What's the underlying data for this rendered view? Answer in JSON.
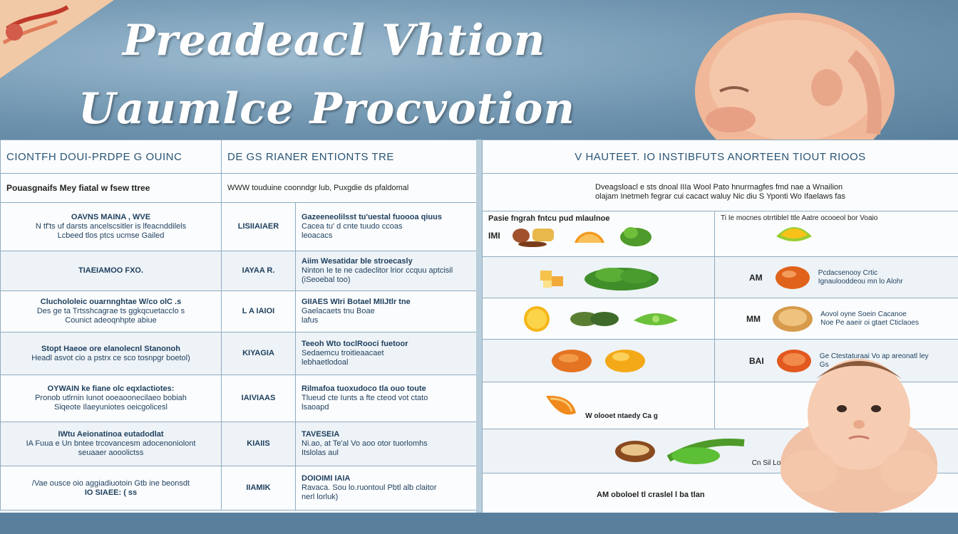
{
  "banner": {
    "title_line1": "Preadeacl Vhtion",
    "title_line2": "Uaumlce Procvotion"
  },
  "left_table": {
    "headers": [
      "CIONTFH DOUI-PRDPE G OUINC",
      "DE GS RIANER ENTIONTS TRE"
    ],
    "subheader": [
      "Pouasgnaifs Mey fiatal w fsew ttree",
      "WWW touduine coonndgr lub, Puxgdie ds pfaldomal"
    ],
    "rows": [
      {
        "label": "OAVNS MAINA , WVE",
        "text": "N tf'ts uf darsts ancelscsitler is lfeacnddilels\nLcbeed tlos ptcs ucmse Gailed",
        "code": "LISIIAIAER",
        "desc_head": "Gazeeneolilsst tu'uestal fuoooa qiuus",
        "desc": "Cacea tu' d cnte tuudo ccoas\nleoacacs"
      },
      {
        "label": "TIAEIAMOO FXO.",
        "text": "",
        "code": "IAYAA R.",
        "desc_head": "Aiim  Wesatidar ble stroecasly",
        "desc": "Ninton Ie te ne cadeclitor lrior ccquu aptcisil\n(iSeoebal too)"
      },
      {
        "label": "Cluchololeic ouarnnghtae  W/co olC .s",
        "text": "Des ge ta Trtsshcagrae ts ggkqcuetacclo s\nCounict adeoqnhpte abiue",
        "code": "L A IAIOI",
        "desc_head": "GIIAES WIri Botael MIIJtlr tne",
        "desc": "Gaelacaets tnu Boae\nlafus"
      },
      {
        "label": "Stopt Haeoe ore elanolecnl Stanonoh",
        "text": "Headl asvot cio a pstrx ce sco tosnpgr boetol)",
        "code": "KIYAGIA",
        "desc_head": "Teeoh Wto  toclRooci fuetoor",
        "desc": "Sedaemcu troitieaacaet\nlebhaetlodoal"
      },
      {
        "label": "OYWAIN ke fiane olc eqxlactiotes:",
        "text": "Pronob utlrnin Iunot ooeaoonecilaeo bobiah\nSiqeote Ilaeyuniotes oeicgolicesl",
        "code": "IAIVIAAS",
        "desc_head": "Rilmafoa tuoxudoco tla ouo toute",
        "desc": "Tlueud cte Iunts a fte cteod vot ctato\nlsaoapd"
      },
      {
        "label": "IWtu Aeionatinoa eutadodlat",
        "text": "IA  Fuua e Un bntee trcovancesm adocenoniolont\nseuaaer aooolictss",
        "code": "KIAIIS",
        "desc_head": "TAVESEIA",
        "desc": "Ni.ao, at Te'al  Vo aoo otor tuorlomhs\nItslolas aul"
      },
      {
        "label": "/Vae ousce oio aggiadiuotoin Gtb ine beonsdt",
        "text": "IO SIAEE: ( ss",
        "code": "IIAMIK",
        "desc_head": "DOIOIMI IAIA",
        "desc": "Ravaca. Sou lo.ruontoul Pbtl alb claitor\nnerl lorluk)"
      }
    ]
  },
  "right_table": {
    "header": "V HAUTEET. IO INSTIBFUTS ANORTEEN TIOUT RIOOS",
    "subheader": "Dveagsloacl e sts dnoal IIIa Wool Pato hnurrnagfes fmd nae a Wnailion\nolajam Inetmeh fegrar cui cacact waluy Nic diu S Yponti Wo Ifaelaws fas",
    "rows": [
      {
        "left_caption": "Pasie fngrah fntcu pud mlaulnoe",
        "left_tag": "IMI",
        "right_caption": "Ti Ie   mocnes otrrtiblel ttle     Aatre ocooeol bor Voaio",
        "right_tag": "",
        "right_note": ""
      },
      {
        "left_caption": "",
        "left_tag": "",
        "right_caption": "",
        "right_tag": "AM",
        "right_note": "Pcdacsenooy Crtic\nIgnaulooddeou mn lo Alohr"
      },
      {
        "left_caption": "",
        "left_tag": "",
        "right_caption": "",
        "right_tag": "MM",
        "right_note": "Aovol oyne Soein Cacanoe\nNoe Pe aaeir oi gtaet Cticlaoes"
      },
      {
        "left_caption": "",
        "left_tag": "",
        "right_caption": "",
        "right_tag": "BAI",
        "right_note": "Ge Ctestaturaai Vo ap areonatl ley\nGs"
      },
      {
        "left_caption": "W olooet ntaedy Ca g",
        "left_tag": "",
        "right_caption": "",
        "right_tag": "",
        "right_note": ""
      },
      {
        "left_caption": "",
        "left_tag": "",
        "right_caption": "Cn Sil Loo PI Coaoaaalin",
        "right_tag": "",
        "right_note": ""
      },
      {
        "left_caption": "AM oboloel tl craslel l ba tlan",
        "left_tag": "",
        "right_caption": "",
        "right_tag": "",
        "right_note": ""
      }
    ]
  }
}
